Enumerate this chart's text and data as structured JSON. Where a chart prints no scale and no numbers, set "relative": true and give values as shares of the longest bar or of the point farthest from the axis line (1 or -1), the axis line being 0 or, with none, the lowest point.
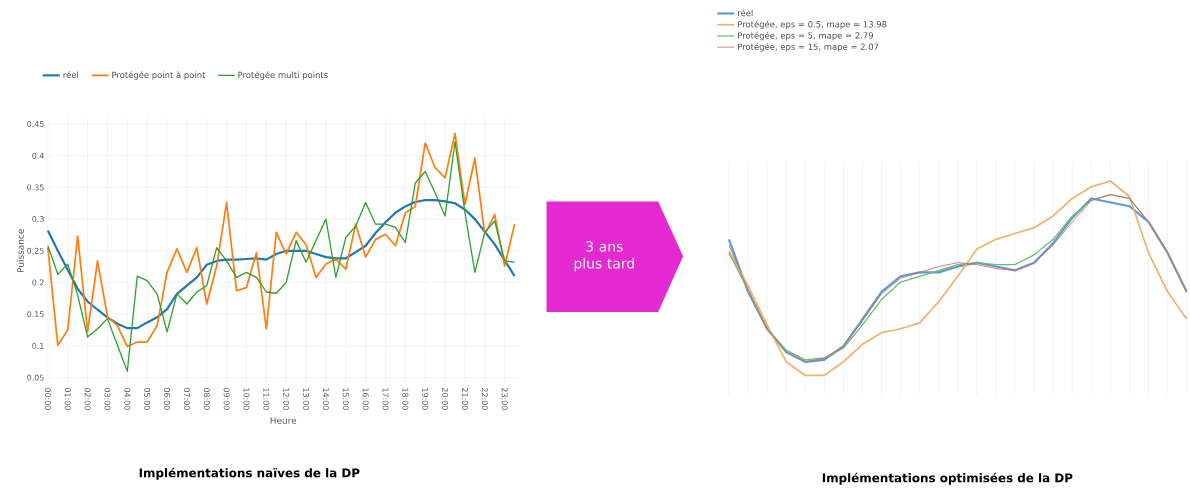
{
  "chart_data": [
    {
      "type": "line",
      "title": "Implémentations naïves de la DP",
      "xlabel": "Heure",
      "ylabel": "Puissance",
      "x": [
        0,
        0.5,
        1,
        1.5,
        2,
        2.5,
        3,
        3.5,
        4,
        4.5,
        5,
        5.5,
        6,
        6.5,
        7,
        7.5,
        8,
        8.5,
        9,
        9.5,
        10,
        10.5,
        11,
        11.5,
        12,
        12.5,
        13,
        13.5,
        14,
        14.5,
        15,
        15.5,
        16,
        16.5,
        17,
        17.5,
        18,
        18.5,
        19,
        19.5,
        20,
        20.5,
        21,
        21.5,
        22,
        22.5,
        23,
        23.5
      ],
      "series": [
        {
          "name": "réel",
          "color": "#1f77b4",
          "values": [
            0.282,
            0.25,
            0.22,
            0.19,
            0.17,
            0.157,
            0.145,
            0.135,
            0.128,
            0.128,
            0.137,
            0.145,
            0.158,
            0.182,
            0.195,
            0.208,
            0.228,
            0.234,
            0.236,
            0.236,
            0.237,
            0.238,
            0.236,
            0.245,
            0.25,
            0.25,
            0.25,
            0.245,
            0.24,
            0.238,
            0.238,
            0.248,
            0.258,
            0.278,
            0.295,
            0.31,
            0.32,
            0.327,
            0.33,
            0.33,
            0.328,
            0.325,
            0.315,
            0.3,
            0.28,
            0.26,
            0.235,
            0.21
          ]
        },
        {
          "name": "Protégée point à point",
          "color": "#ff7f0e",
          "values": [
            0.255,
            0.101,
            0.125,
            0.273,
            0.122,
            0.234,
            0.146,
            0.132,
            0.099,
            0.106,
            0.106,
            0.132,
            0.216,
            0.253,
            0.216,
            0.255,
            0.166,
            0.226,
            0.326,
            0.187,
            0.192,
            0.247,
            0.127,
            0.279,
            0.245,
            0.279,
            0.26,
            0.208,
            0.229,
            0.237,
            0.221,
            0.292,
            0.24,
            0.268,
            0.276,
            0.258,
            0.31,
            0.32,
            0.42,
            0.381,
            0.365,
            0.435,
            0.323,
            0.396,
            0.276,
            0.307,
            0.226,
            0.292
          ]
        },
        {
          "name": "Protégée multi points",
          "color": "#2ca02c",
          "values": [
            0.258,
            0.213,
            0.229,
            0.18,
            0.114,
            0.127,
            0.143,
            0.101,
            0.06,
            0.21,
            0.203,
            0.182,
            0.122,
            0.182,
            0.166,
            0.185,
            0.195,
            0.255,
            0.234,
            0.208,
            0.216,
            0.208,
            0.185,
            0.183,
            0.2,
            0.266,
            0.232,
            0.266,
            0.3,
            0.208,
            0.271,
            0.289,
            0.326,
            0.292,
            0.292,
            0.287,
            0.263,
            0.357,
            0.375,
            0.341,
            0.305,
            0.422,
            0.31,
            0.216,
            0.279,
            0.297,
            0.234,
            0.232
          ]
        }
      ],
      "xlim": [
        0,
        23.7
      ],
      "ylim": [
        0.04,
        0.46
      ],
      "xticks": [
        {
          "value": 0,
          "label": "00:00"
        },
        {
          "value": 1,
          "label": "01:00"
        },
        {
          "value": 2,
          "label": "02:00"
        },
        {
          "value": 3,
          "label": "03:00"
        },
        {
          "value": 4,
          "label": "04:00"
        },
        {
          "value": 5,
          "label": "05:00"
        },
        {
          "value": 6,
          "label": "06:00"
        },
        {
          "value": 7,
          "label": "07:00"
        },
        {
          "value": 8,
          "label": "08:00"
        },
        {
          "value": 9,
          "label": "09:00"
        },
        {
          "value": 10,
          "label": "10:00"
        },
        {
          "value": 11,
          "label": "11:00"
        },
        {
          "value": 12,
          "label": "12:00"
        },
        {
          "value": 13,
          "label": "13:00"
        },
        {
          "value": 14,
          "label": "14:00"
        },
        {
          "value": 15,
          "label": "15:00"
        },
        {
          "value": 16,
          "label": "16:00"
        },
        {
          "value": 17,
          "label": "17:00"
        },
        {
          "value": 18,
          "label": "18:00"
        },
        {
          "value": 19,
          "label": "19:00"
        },
        {
          "value": 20,
          "label": "20:00"
        },
        {
          "value": 21,
          "label": "21:00"
        },
        {
          "value": 22,
          "label": "22:00"
        },
        {
          "value": 23,
          "label": "23:00"
        }
      ],
      "yticks": [
        0.05,
        0.1,
        0.15,
        0.2,
        0.25,
        0.3,
        0.35,
        0.4,
        0.45
      ],
      "grid": true,
      "legend": "top",
      "marker": "none",
      "line_style": "solid"
    },
    {
      "type": "line",
      "title": "Implémentations optimisées de la DP",
      "relative": true,
      "categories": [
        null,
        null,
        null,
        null,
        null,
        null,
        null,
        null,
        null,
        null,
        null,
        null,
        null,
        null,
        null,
        null,
        null,
        null,
        null,
        null,
        null,
        null,
        null,
        null,
        null
      ],
      "series": [
        {
          "name": "réel",
          "color": "#5b9bd5",
          "values": [
            0.7,
            0.43,
            0.24,
            0.12,
            0.07,
            0.08,
            0.15,
            0.29,
            0.43,
            0.51,
            0.53,
            0.53,
            0.56,
            0.58,
            0.56,
            0.54,
            0.58,
            0.68,
            0.81,
            0.91,
            0.89,
            0.87,
            0.79,
            0.63,
            0.43
          ]
        },
        {
          "name": "Protégée, eps = 0.5, mape = 13.98",
          "color": "#f5b070",
          "values": [
            0.64,
            0.46,
            0.26,
            0.07,
            0,
            0,
            0.07,
            0.16,
            0.22,
            0.24,
            0.27,
            0.38,
            0.51,
            0.65,
            0.7,
            0.73,
            0.76,
            0.82,
            0.91,
            0.97,
            1,
            0.92,
            0.63,
            0.43,
            0.29
          ]
        },
        {
          "name": "Protégée, eps = 5, mape = 2.79",
          "color": "#6abf69",
          "values": [
            0.63,
            0.44,
            0.24,
            0.13,
            0.08,
            0.09,
            0.14,
            0.26,
            0.39,
            0.48,
            0.51,
            0.54,
            0.57,
            0.58,
            0.57,
            0.57,
            0.62,
            0.7,
            0.82,
            0.9,
            0.93,
            0.91,
            0.79,
            0.63,
            0.43
          ]
        },
        {
          "name": "Protégée, eps = 15, mape = 2.07",
          "color": "#e06070",
          "values": [
            0.67,
            0.44,
            0.24,
            0.12,
            0.07,
            0.09,
            0.15,
            0.28,
            0.42,
            0.5,
            0.53,
            0.56,
            0.58,
            0.57,
            0.55,
            0.54,
            0.58,
            0.67,
            0.79,
            0.9,
            0.93,
            0.91,
            0.79,
            0.63,
            0.43
          ]
        }
      ],
      "annotations": [
        "3 ans plus tard"
      ],
      "grid": "x",
      "legend": "top left",
      "marker": "none",
      "line_style": "solid"
    }
  ]
}
